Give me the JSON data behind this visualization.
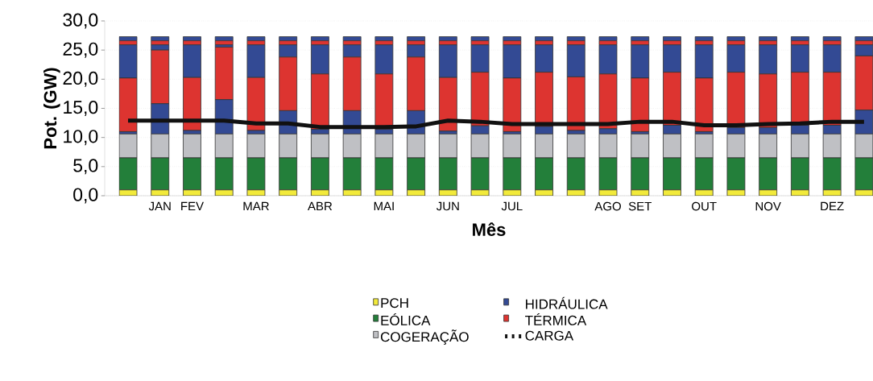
{
  "chart_data": {
    "type": "bar",
    "stacked": true,
    "xlabel": "Mês",
    "ylabel": "Pot. (GW)",
    "categories": [
      null,
      "JAN",
      "FEV",
      null,
      "MAR",
      null,
      "ABR",
      null,
      "MAI",
      null,
      "JUN",
      null,
      "JUL",
      null,
      null,
      "AGO",
      "SET",
      null,
      "OUT",
      null,
      "NOV",
      null,
      "DEZ",
      null
    ],
    "ylim": [
      0,
      30
    ],
    "yticks": [
      {
        "value": 0,
        "label": "0,0"
      },
      {
        "value": 5,
        "label": "5,0"
      },
      {
        "value": 10,
        "label": "10,0"
      },
      {
        "value": 15,
        "label": "15,0"
      },
      {
        "value": 20,
        "label": "20,0"
      },
      {
        "value": 25,
        "label": "25,0"
      },
      {
        "value": 30,
        "label": "30,0"
      }
    ],
    "grid": "y",
    "legend": "bottom",
    "series": [
      {
        "name": "PCH",
        "color": "#f2ea3a",
        "values": [
          1.0,
          1.0,
          1.0,
          1.0,
          1.0,
          1.0,
          1.0,
          1.0,
          1.0,
          1.0,
          1.0,
          1.0,
          1.0,
          1.0,
          1.0,
          1.0,
          1.0,
          1.0,
          1.0,
          1.0,
          1.0,
          1.0,
          1.0,
          1.0
        ]
      },
      {
        "name": "EÓLICA",
        "color": "#237f3a",
        "values": [
          5.5,
          5.5,
          5.5,
          5.5,
          5.5,
          5.5,
          5.5,
          5.5,
          5.5,
          5.5,
          5.5,
          5.5,
          5.5,
          5.5,
          5.5,
          5.5,
          5.5,
          5.5,
          5.5,
          5.5,
          5.5,
          5.5,
          5.5,
          5.5
        ]
      },
      {
        "name": "COGERAÇÃO",
        "color": "#bfc0c4",
        "values": [
          4.1,
          4.1,
          4.1,
          4.1,
          4.1,
          4.1,
          4.1,
          4.1,
          4.1,
          4.1,
          4.1,
          4.1,
          4.1,
          4.1,
          4.1,
          4.1,
          4.1,
          4.1,
          4.1,
          4.1,
          4.1,
          4.1,
          4.1,
          4.1
        ]
      },
      {
        "name": "HIDRÁULICA",
        "color": "#334a94",
        "values": [
          0.4,
          5.2,
          0.6,
          5.9,
          0.6,
          4.0,
          0.8,
          4.0,
          0.8,
          4.0,
          0.5,
          1.4,
          0.4,
          1.3,
          0.6,
          0.9,
          0.4,
          1.5,
          0.4,
          1.1,
          1.1,
          1.5,
          1.5,
          4.1
        ]
      },
      {
        "name": "TÉRMICA",
        "color": "#dd3430",
        "values": [
          9.2,
          9.2,
          9.1,
          9.0,
          9.1,
          9.2,
          9.5,
          9.2,
          9.5,
          9.2,
          9.2,
          9.2,
          9.2,
          9.3,
          9.2,
          9.4,
          9.2,
          9.1,
          9.2,
          9.5,
          9.2,
          9.1,
          9.1,
          9.3
        ]
      },
      {
        "color": "#334a94",
        "values": [
          5.7,
          0.9,
          5.6,
          0.4,
          5.6,
          2.1,
          5.0,
          2.1,
          5.0,
          2.1,
          5.6,
          4.7,
          5.7,
          4.7,
          5.5,
          5.0,
          5.7,
          4.7,
          5.7,
          4.7,
          5.0,
          4.7,
          4.7,
          1.9
        ]
      },
      {
        "color": "#dd3430",
        "values": [
          0.7,
          0.7,
          0.7,
          0.7,
          0.7,
          0.7,
          0.7,
          0.7,
          0.7,
          0.7,
          0.7,
          0.7,
          0.7,
          0.7,
          0.7,
          0.7,
          0.7,
          0.7,
          0.7,
          0.7,
          0.7,
          0.7,
          0.7,
          0.7
        ]
      },
      {
        "color": "#334a94",
        "values": [
          0.7,
          0.7,
          0.7,
          0.7,
          0.7,
          0.7,
          0.7,
          0.7,
          0.7,
          0.7,
          0.7,
          0.7,
          0.7,
          0.7,
          0.7,
          0.7,
          0.7,
          0.7,
          0.7,
          0.7,
          0.7,
          0.7,
          0.7,
          0.7
        ]
      },
      {
        "name": "CARGA",
        "type": "line",
        "color": "#111111",
        "values": [
          12.9,
          12.9,
          12.9,
          12.9,
          12.4,
          12.4,
          11.8,
          11.8,
          11.8,
          11.9,
          12.9,
          12.7,
          12.3,
          12.3,
          12.3,
          12.3,
          12.7,
          12.7,
          12.1,
          12.1,
          12.3,
          12.4,
          12.7,
          12.7
        ]
      }
    ]
  }
}
